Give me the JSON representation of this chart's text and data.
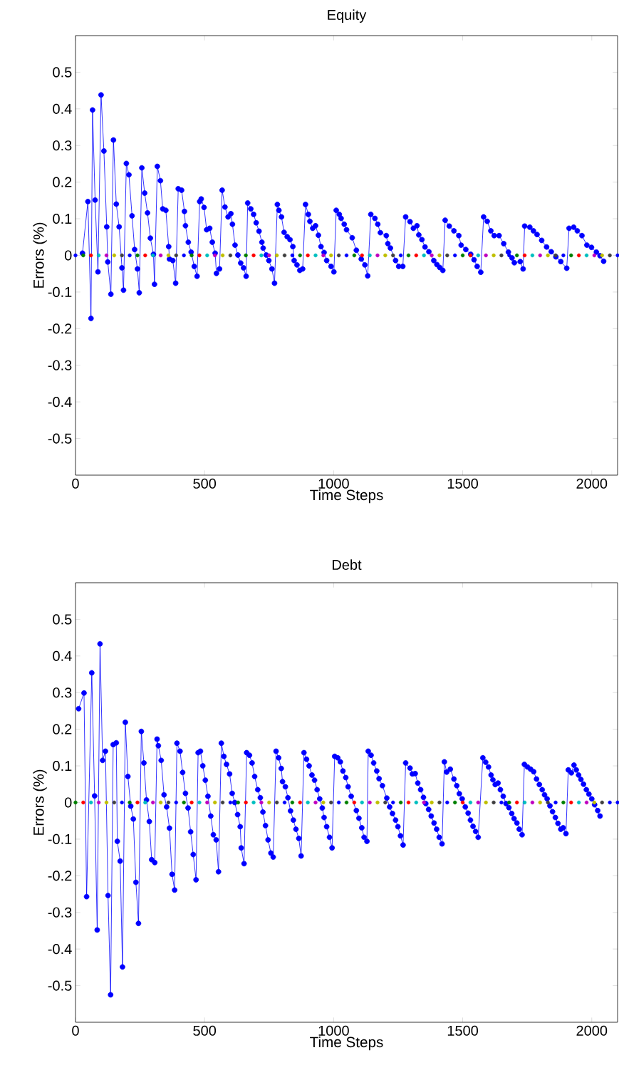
{
  "chart_data": [
    {
      "type": "line",
      "title": "Equity",
      "xlabel": "Time Steps",
      "ylabel": "Errors (%)",
      "xlim": [
        0,
        2100
      ],
      "ylim": [
        -0.6,
        0.6
      ],
      "xticks": [
        0,
        500,
        1000,
        1500,
        2000
      ],
      "yticks": [
        -0.5,
        -0.4,
        -0.3,
        -0.2,
        -0.1,
        0,
        0.1,
        0.2,
        0.3,
        0.4,
        0.5
      ],
      "marker": "circle",
      "line_style": "solid",
      "series": [
        {
          "color": "#0000ff",
          "x": [
            27,
            48,
            60,
            66,
            76,
            87,
            99,
            110,
            121,
            125,
            137,
            147,
            158,
            169,
            180,
            186,
            197,
            207,
            219,
            229,
            240,
            247,
            257,
            268,
            279,
            290,
            302,
            306,
            317,
            329,
            338,
            350,
            361,
            364,
            377,
            388,
            398,
            411,
            422,
            426,
            437,
            448,
            460,
            471,
            481,
            487,
            498,
            508,
            520,
            530,
            541,
            546,
            558,
            568,
            579,
            591,
            602,
            608,
            618,
            629,
            640,
            651,
            661,
            667,
            679,
            690,
            700,
            711,
            722,
            727,
            739,
            749,
            761,
            771,
            782,
            788,
            798,
            808,
            820,
            831,
            842,
            847,
            858,
            869,
            880,
            891,
            902,
            908,
            919,
            930,
            941,
            951,
            963,
            973,
            990,
            1001,
            1010,
            1022,
            1029,
            1041,
            1050,
            1072,
            1088,
            1107,
            1121,
            1132,
            1144,
            1160,
            1171,
            1181,
            1204,
            1210,
            1220,
            1240,
            1252,
            1268,
            1279,
            1296,
            1309,
            1323,
            1330,
            1342,
            1354,
            1369,
            1388,
            1400,
            1411,
            1423,
            1432,
            1448,
            1466,
            1485,
            1494,
            1512,
            1531,
            1544,
            1556,
            1570,
            1581,
            1595,
            1609,
            1622,
            1641,
            1659,
            1677,
            1691,
            1700,
            1723,
            1734,
            1740,
            1760,
            1774,
            1788,
            1806,
            1825,
            1843,
            1861,
            1880,
            1903,
            1912,
            1930,
            1944,
            1962,
            1981,
            1999,
            2018,
            2032,
            2046
          ],
          "values": [
            0.006,
            0.147,
            -0.172,
            0.397,
            0.151,
            -0.045,
            0.438,
            0.285,
            0.078,
            -0.018,
            -0.106,
            0.315,
            0.14,
            0.078,
            -0.034,
            -0.095,
            0.251,
            0.22,
            0.108,
            0.016,
            -0.037,
            -0.102,
            0.239,
            0.17,
            0.116,
            0.047,
            0.003,
            -0.079,
            0.243,
            0.204,
            0.127,
            0.123,
            0.024,
            -0.01,
            -0.014,
            -0.076,
            0.182,
            0.178,
            0.12,
            0.081,
            0.036,
            0.009,
            -0.03,
            -0.057,
            0.147,
            0.154,
            0.131,
            0.07,
            0.074,
            0.036,
            0.006,
            -0.049,
            -0.037,
            0.178,
            0.132,
            0.105,
            0.114,
            0.085,
            0.028,
            0.001,
            -0.021,
            -0.034,
            -0.057,
            0.143,
            0.127,
            0.112,
            0.089,
            0.066,
            0.036,
            0.02,
            0.001,
            -0.014,
            -0.037,
            -0.076,
            0.139,
            0.123,
            0.105,
            0.063,
            0.051,
            0.043,
            0.024,
            -0.014,
            -0.026,
            -0.041,
            -0.037,
            0.139,
            0.112,
            0.093,
            0.074,
            0.081,
            0.055,
            0.024,
            0.008,
            -0.014,
            -0.03,
            -0.045,
            0.123,
            0.112,
            0.101,
            0.085,
            0.07,
            0.048,
            0.014,
            -0.01,
            -0.026,
            -0.056,
            0.112,
            0.101,
            0.085,
            0.062,
            0.054,
            0.032,
            0.02,
            -0.014,
            -0.03,
            -0.03,
            0.105,
            0.092,
            0.074,
            0.081,
            0.056,
            0.043,
            0.023,
            0.01,
            -0.014,
            -0.025,
            -0.033,
            -0.041,
            0.096,
            0.08,
            0.067,
            0.054,
            0.028,
            0.016,
            0.003,
            -0.012,
            -0.03,
            -0.046,
            0.105,
            0.093,
            0.067,
            0.054,
            0.054,
            0.032,
            0.009,
            -0.007,
            -0.02,
            -0.017,
            -0.037,
            0.08,
            0.077,
            0.067,
            0.057,
            0.041,
            0.023,
            0.01,
            -0.004,
            -0.017,
            -0.035,
            0.074,
            0.077,
            0.067,
            0.054,
            0.028,
            0.022,
            0.009,
            -0.001,
            -0.016
          ]
        },
        {
          "type": "scatter",
          "x": [
            0,
            30,
            60,
            90,
            120,
            150,
            180,
            210,
            240,
            270,
            300,
            330,
            360,
            390,
            420,
            450,
            480,
            510,
            540,
            570,
            600,
            630,
            660,
            690,
            720,
            750,
            780,
            810,
            840,
            870,
            900,
            930,
            960,
            990,
            1020,
            1050,
            1080,
            1110,
            1140,
            1170,
            1200,
            1230,
            1260,
            1290,
            1320,
            1350,
            1380,
            1410,
            1440,
            1470,
            1500,
            1530,
            1560,
            1590,
            1620,
            1650,
            1680,
            1710,
            1740,
            1770,
            1800,
            1830,
            1860,
            1890,
            1920,
            1950,
            1980,
            2010,
            2040,
            2070,
            2100
          ],
          "values": [
            0,
            0,
            0,
            0,
            0,
            0,
            0,
            0,
            0,
            0,
            0,
            0,
            0,
            0,
            0,
            0,
            0,
            0,
            0,
            0,
            0,
            0,
            0,
            0,
            0,
            0,
            0,
            0,
            0,
            0,
            0,
            0,
            0,
            0,
            0,
            0,
            0,
            0,
            0,
            0,
            0,
            0,
            0,
            0,
            0,
            0,
            0,
            0,
            0,
            0,
            0,
            0,
            0,
            0,
            0,
            0,
            0,
            0,
            0,
            0,
            0,
            0,
            0,
            0,
            0,
            0,
            0,
            0,
            0,
            0,
            0
          ],
          "colors": [
            "#0000ff",
            "#008000",
            "#ff0000",
            "#00bfbf",
            "#bf00bf",
            "#bfbf00",
            "#404040",
            "#0000ff",
            "#008000",
            "#ff0000",
            "#00bfbf",
            "#bf00bf",
            "#bfbf00",
            "#404040",
            "#0000ff",
            "#008000",
            "#ff0000",
            "#00bfbf",
            "#bf00bf",
            "#bfbf00",
            "#404040",
            "#0000ff",
            "#008000",
            "#ff0000",
            "#00bfbf",
            "#bf00bf",
            "#bfbf00",
            "#404040",
            "#0000ff",
            "#008000",
            "#ff0000",
            "#00bfbf",
            "#bf00bf",
            "#bfbf00",
            "#404040",
            "#0000ff",
            "#008000",
            "#ff0000",
            "#00bfbf",
            "#bf00bf",
            "#bfbf00",
            "#404040",
            "#0000ff",
            "#008000",
            "#ff0000",
            "#00bfbf",
            "#bf00bf",
            "#bfbf00",
            "#404040",
            "#0000ff",
            "#008000",
            "#ff0000",
            "#00bfbf",
            "#bf00bf",
            "#bfbf00",
            "#404040",
            "#0000ff",
            "#008000",
            "#ff0000",
            "#00bfbf",
            "#bf00bf",
            "#bfbf00",
            "#404040",
            "#0000ff",
            "#008000",
            "#ff0000",
            "#00bfbf",
            "#bf00bf",
            "#bfbf00",
            "#404040",
            "#0000ff"
          ]
        }
      ]
    },
    {
      "type": "line",
      "title": "Debt",
      "xlabel": "Time Steps",
      "ylabel": "Errors (%)",
      "xlim": [
        0,
        2100
      ],
      "ylim": [
        -0.6,
        0.6
      ],
      "xticks": [
        0,
        500,
        1000,
        1500,
        2000
      ],
      "yticks": [
        -0.5,
        -0.4,
        -0.3,
        -0.2,
        -0.1,
        0,
        0.1,
        0.2,
        0.3,
        0.4,
        0.5
      ],
      "marker": "circle",
      "line_style": "solid",
      "series": [
        {
          "color": "#0000ff",
          "x": [
            12,
            33,
            43,
            63,
            74,
            84,
            95,
            105,
            116,
            126,
            136,
            146,
            158,
            162,
            173,
            182,
            193,
            203,
            214,
            224,
            234,
            244,
            255,
            265,
            275,
            286,
            295,
            307,
            316,
            321,
            332,
            343,
            353,
            364,
            374,
            384,
            393,
            405,
            415,
            426,
            436,
            446,
            456,
            467,
            475,
            484,
            493,
            503,
            513,
            524,
            534,
            545,
            554,
            565,
            575,
            585,
            597,
            607,
            617,
            628,
            638,
            642,
            653,
            663,
            674,
            684,
            694,
            706,
            716,
            726,
            736,
            746,
            757,
            766,
            777,
            787,
            797,
            802,
            813,
            823,
            833,
            844,
            854,
            865,
            874,
            885,
            895,
            905,
            916,
            926,
            936,
            946,
            956,
            963,
            973,
            984,
            994,
            1004,
            1016,
            1026,
            1036,
            1047,
            1056,
            1068,
            1088,
            1098,
            1109,
            1118,
            1129,
            1134,
            1145,
            1155,
            1167,
            1176,
            1189,
            1206,
            1217,
            1228,
            1240,
            1249,
            1259,
            1269,
            1279,
            1296,
            1305,
            1316,
            1326,
            1337,
            1348,
            1357,
            1368,
            1378,
            1389,
            1399,
            1409,
            1420,
            1429,
            1438,
            1452,
            1466,
            1477,
            1487,
            1498,
            1510,
            1521,
            1530,
            1540,
            1550,
            1560,
            1578,
            1589,
            1600,
            1610,
            1617,
            1626,
            1637,
            1646,
            1657,
            1668,
            1679,
            1690,
            1699,
            1710,
            1719,
            1730,
            1739,
            1751,
            1763,
            1775,
            1786,
            1797,
            1808,
            1817,
            1827,
            1838,
            1848,
            1859,
            1869,
            1880,
            1889,
            1900,
            1909,
            1921,
            1931,
            1940,
            1949,
            1958,
            1968,
            1979,
            1989,
            2000,
            2011,
            2023,
            2032
          ],
          "values": [
            0.256,
            0.299,
            -0.257,
            0.354,
            0.018,
            -0.348,
            0.433,
            0.115,
            0.14,
            -0.254,
            -0.525,
            0.158,
            0.163,
            -0.106,
            -0.16,
            -0.449,
            0.219,
            0.071,
            -0.01,
            -0.045,
            -0.218,
            -0.33,
            0.194,
            0.108,
            0.007,
            -0.052,
            -0.156,
            -0.164,
            0.173,
            0.155,
            0.115,
            0.021,
            -0.012,
            -0.07,
            -0.196,
            -0.239,
            0.162,
            0.14,
            0.082,
            0.025,
            -0.015,
            -0.08,
            -0.142,
            -0.211,
            0.136,
            0.14,
            0.1,
            0.061,
            0.017,
            -0.037,
            -0.088,
            -0.102,
            -0.189,
            0.162,
            0.126,
            0.104,
            0.078,
            0.025,
            0,
            -0.033,
            -0.066,
            -0.124,
            -0.167,
            0.136,
            0.129,
            0.108,
            0.071,
            0.035,
            0.013,
            -0.026,
            -0.063,
            -0.102,
            -0.138,
            -0.149,
            0.14,
            0.122,
            0.093,
            0.057,
            0.043,
            0.013,
            -0.023,
            -0.048,
            -0.073,
            -0.098,
            -0.146,
            0.136,
            0.118,
            0.1,
            0.075,
            0.061,
            0.035,
            0.01,
            -0.015,
            -0.041,
            -0.066,
            -0.095,
            -0.124,
            0.126,
            0.122,
            0.111,
            0.086,
            0.068,
            0.043,
            0.017,
            -0.022,
            -0.043,
            -0.069,
            -0.095,
            -0.106,
            0.14,
            0.129,
            0.108,
            0.086,
            0.065,
            0.046,
            0.012,
            -0.012,
            -0.03,
            -0.048,
            -0.066,
            -0.091,
            -0.116,
            0.108,
            0.094,
            0.078,
            0.079,
            0.053,
            0.035,
            0.014,
            -0.003,
            -0.019,
            -0.037,
            -0.056,
            -0.073,
            -0.095,
            -0.113,
            0.111,
            0.083,
            0.091,
            0.064,
            0.046,
            0.024,
            0.01,
            -0.012,
            -0.029,
            -0.048,
            -0.065,
            -0.079,
            -0.095,
            0.122,
            0.11,
            0.097,
            0.075,
            0.062,
            0.049,
            0.053,
            0.035,
            0.017,
            -0.003,
            -0.014,
            -0.03,
            -0.044,
            -0.056,
            -0.073,
            -0.088,
            0.104,
            0.097,
            0.091,
            0.084,
            0.064,
            0.049,
            0.035,
            0.021,
            0.01,
            -0.009,
            -0.025,
            -0.041,
            -0.057,
            -0.073,
            -0.069,
            -0.085,
            0.089,
            0.081,
            0.102,
            0.089,
            0.075,
            0.063,
            0.05,
            0.035,
            0.023,
            0.01,
            -0.006,
            -0.022,
            -0.037
          ]
        },
        {
          "type": "scatter",
          "x": [
            0,
            30,
            60,
            90,
            120,
            150,
            180,
            210,
            240,
            270,
            300,
            330,
            360,
            390,
            420,
            450,
            480,
            510,
            540,
            570,
            600,
            630,
            660,
            690,
            720,
            750,
            780,
            810,
            840,
            870,
            900,
            930,
            960,
            990,
            1020,
            1050,
            1080,
            1110,
            1140,
            1170,
            1200,
            1230,
            1260,
            1290,
            1320,
            1350,
            1380,
            1410,
            1440,
            1470,
            1500,
            1530,
            1560,
            1590,
            1620,
            1650,
            1680,
            1710,
            1740,
            1770,
            1800,
            1830,
            1860,
            1890,
            1920,
            1950,
            1980,
            2010,
            2040,
            2070,
            2100
          ],
          "values": [
            0,
            0,
            0,
            0,
            0,
            0,
            0,
            0,
            0,
            0,
            0,
            0,
            0,
            0,
            0,
            0,
            0,
            0,
            0,
            0,
            0,
            0,
            0,
            0,
            0,
            0,
            0,
            0,
            0,
            0,
            0,
            0,
            0,
            0,
            0,
            0,
            0,
            0,
            0,
            0,
            0,
            0,
            0,
            0,
            0,
            0,
            0,
            0,
            0,
            0,
            0,
            0,
            0,
            0,
            0,
            0,
            0,
            0,
            0,
            0,
            0,
            0,
            0,
            0,
            0,
            0,
            0,
            0,
            0,
            0,
            0
          ],
          "colors": [
            "#008000",
            "#ff0000",
            "#00bfbf",
            "#bf00bf",
            "#bfbf00",
            "#404040",
            "#0000ff",
            "#008000",
            "#ff0000",
            "#00bfbf",
            "#bf00bf",
            "#bfbf00",
            "#404040",
            "#0000ff",
            "#008000",
            "#ff0000",
            "#00bfbf",
            "#bf00bf",
            "#bfbf00",
            "#404040",
            "#0000ff",
            "#008000",
            "#ff0000",
            "#00bfbf",
            "#bf00bf",
            "#bfbf00",
            "#404040",
            "#0000ff",
            "#008000",
            "#ff0000",
            "#00bfbf",
            "#bf00bf",
            "#bfbf00",
            "#404040",
            "#0000ff",
            "#008000",
            "#ff0000",
            "#00bfbf",
            "#bf00bf",
            "#bfbf00",
            "#404040",
            "#0000ff",
            "#008000",
            "#ff0000",
            "#00bfbf",
            "#bf00bf",
            "#bfbf00",
            "#404040",
            "#0000ff",
            "#008000",
            "#ff0000",
            "#00bfbf",
            "#bf00bf",
            "#bfbf00",
            "#404040",
            "#0000ff",
            "#008000",
            "#ff0000",
            "#00bfbf",
            "#bf00bf",
            "#bfbf00",
            "#404040",
            "#0000ff",
            "#008000",
            "#ff0000",
            "#00bfbf",
            "#bf00bf",
            "#bfbf00",
            "#404040",
            "#0000ff",
            "#0000ff"
          ]
        }
      ]
    }
  ]
}
